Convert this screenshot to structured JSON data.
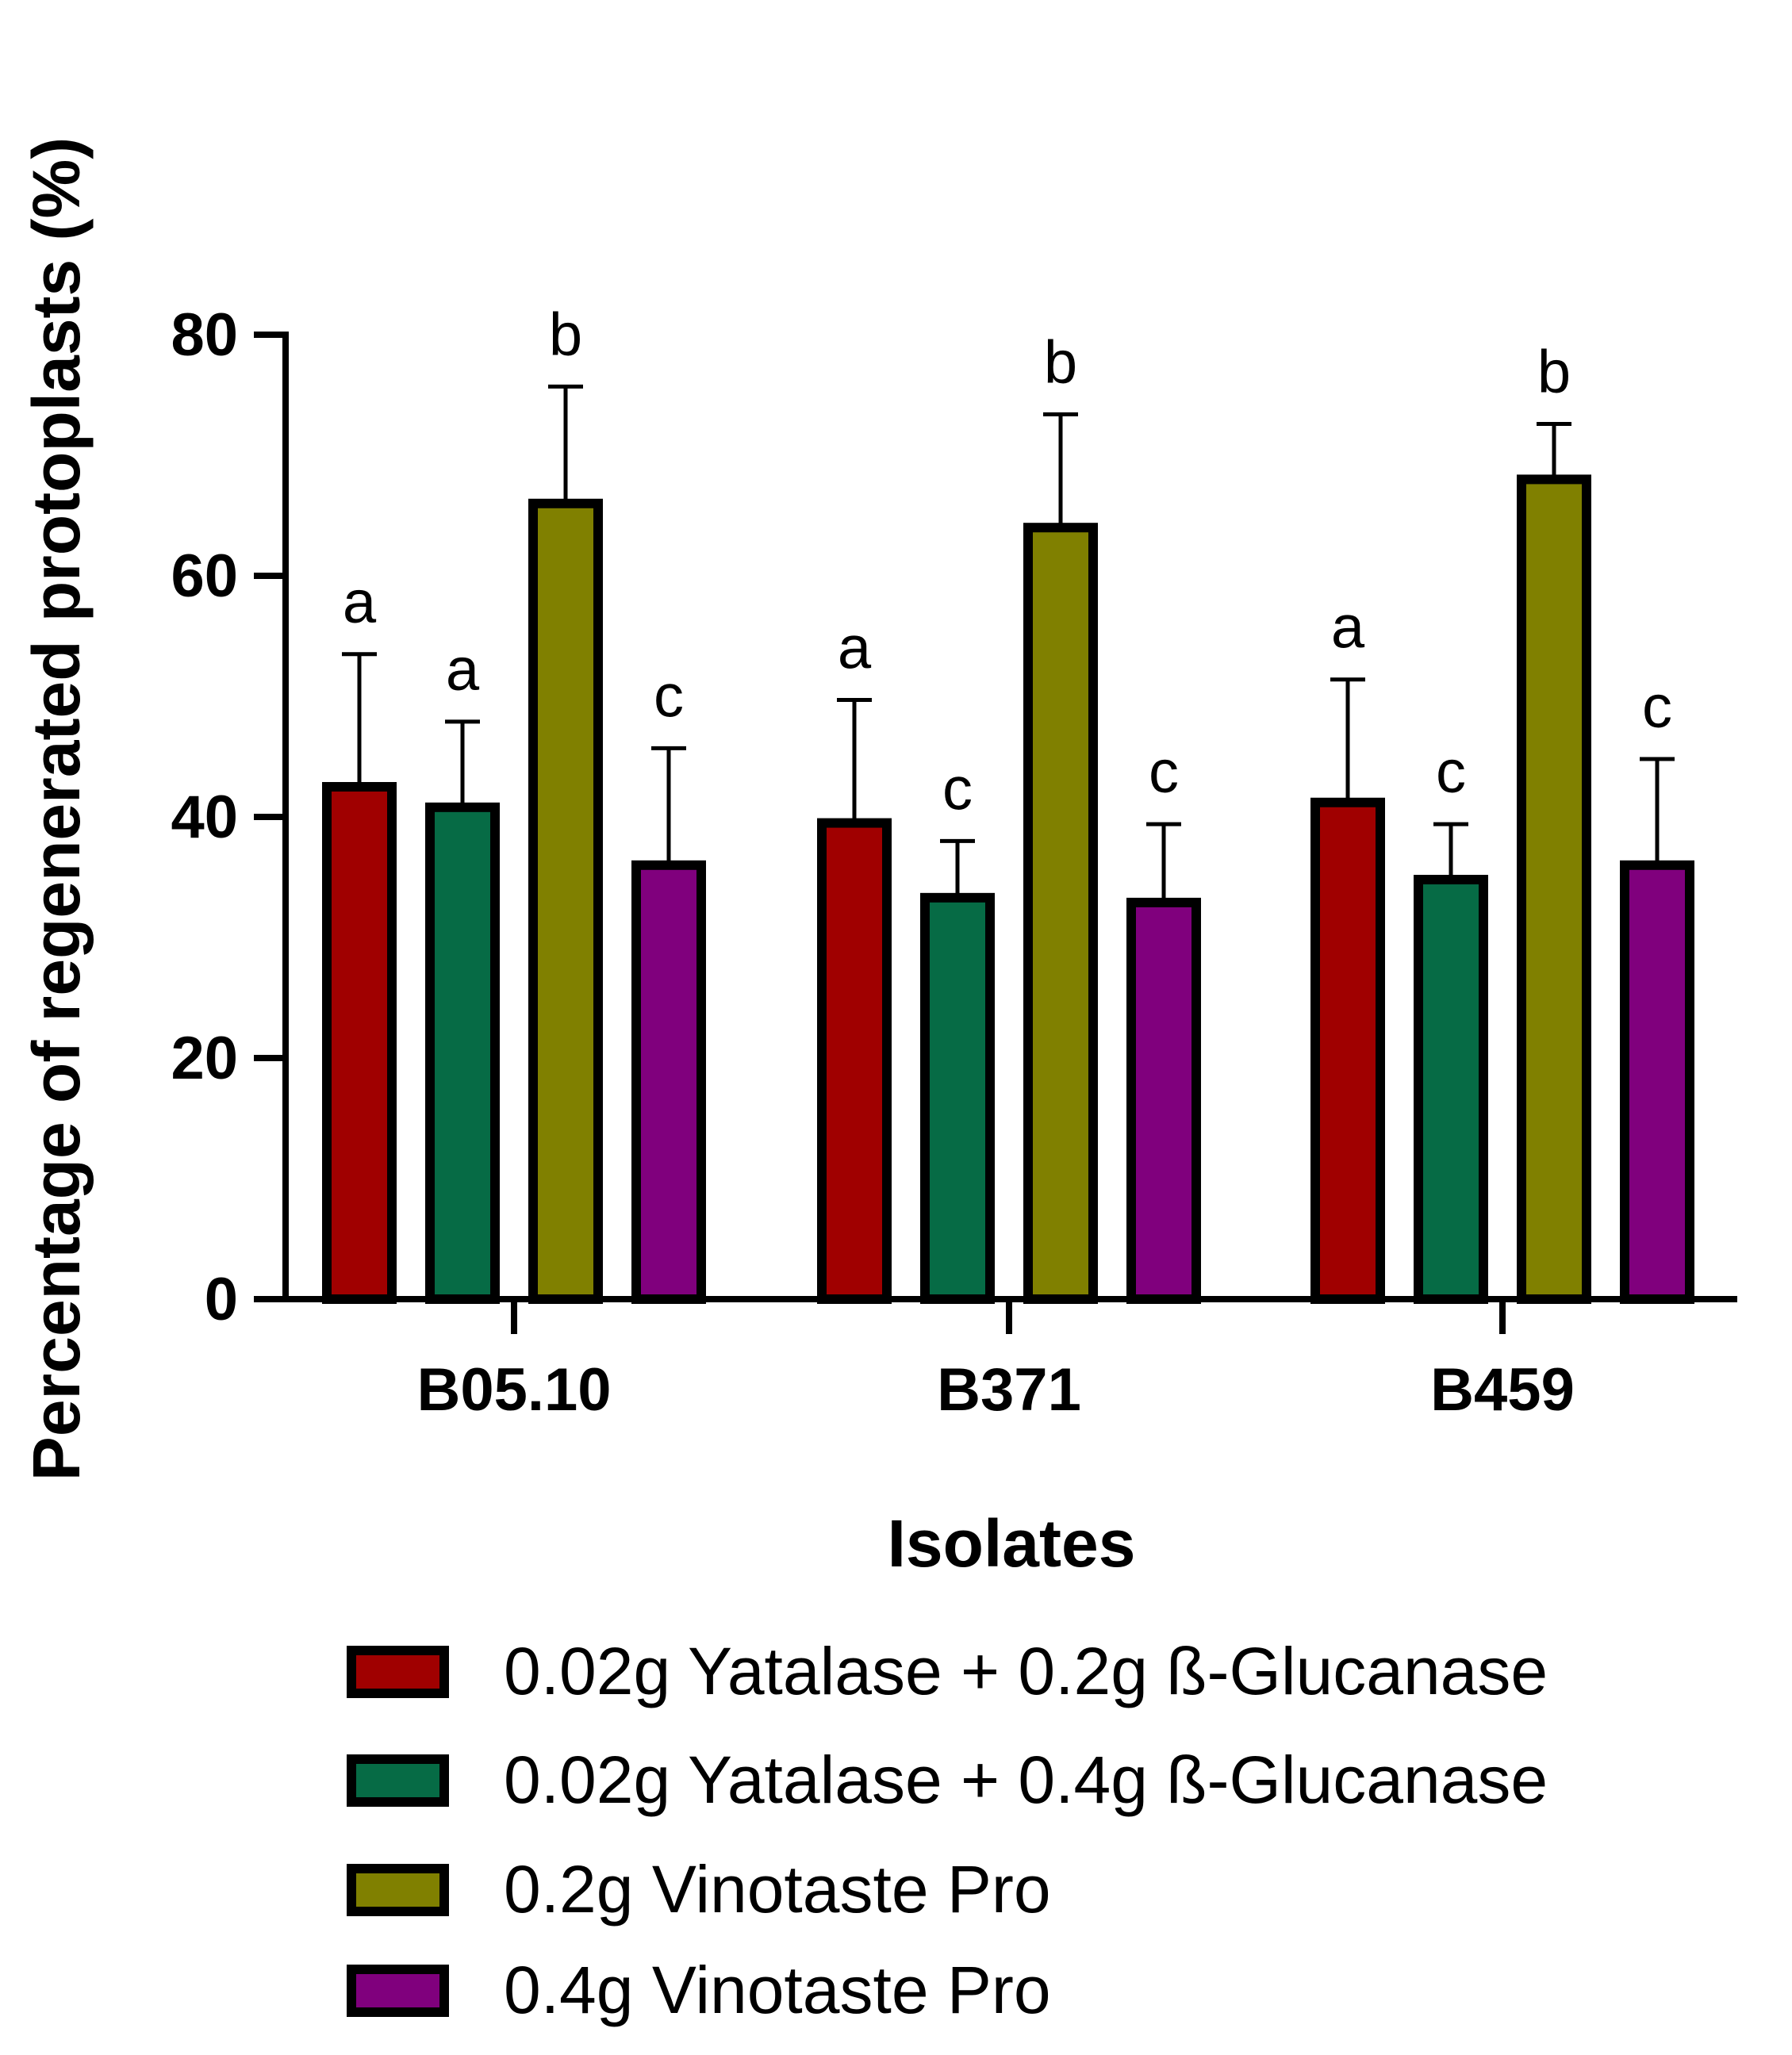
{
  "chart_data": {
    "type": "bar",
    "title": "",
    "xlabel": "Isolates",
    "ylabel": "Percentage of regenerated protoplasts (%)",
    "ylim": [
      0,
      80
    ],
    "yticks": [
      0,
      20,
      40,
      60,
      80
    ],
    "ytick_labels": [
      "0",
      "20",
      "40",
      "60",
      "80"
    ],
    "categories": [
      "B05.10",
      "B371",
      "B459"
    ],
    "series": [
      {
        "name": "0.02g Yatalase + 0.2g ß-Glucanase",
        "color": "#a00000",
        "values": [
          42.5,
          39.5,
          41.2
        ],
        "errors": [
          11.0,
          10.2,
          10.2
        ],
        "letters": [
          "a",
          "a",
          "a"
        ]
      },
      {
        "name": "0.02g Yatalase + 0.4g ß-Glucanase",
        "color": "#066b45",
        "values": [
          40.8,
          33.3,
          34.8
        ],
        "errors": [
          7.1,
          4.7,
          4.6
        ],
        "letters": [
          "a",
          "c",
          "c"
        ]
      },
      {
        "name": "0.2g Vinotaste Pro",
        "color": "#808000",
        "values": [
          66.0,
          64.0,
          68.0
        ],
        "errors": [
          9.7,
          9.4,
          4.6
        ],
        "letters": [
          "b",
          "b",
          "b"
        ]
      },
      {
        "name": "0.4g Vinotaste Pro",
        "color": "#80007d",
        "values": [
          36.0,
          32.9,
          36.0
        ],
        "errors": [
          9.7,
          6.5,
          8.8
        ],
        "letters": [
          "c",
          "c",
          "c"
        ]
      }
    ],
    "grid": false,
    "legend_position": "bottom"
  }
}
